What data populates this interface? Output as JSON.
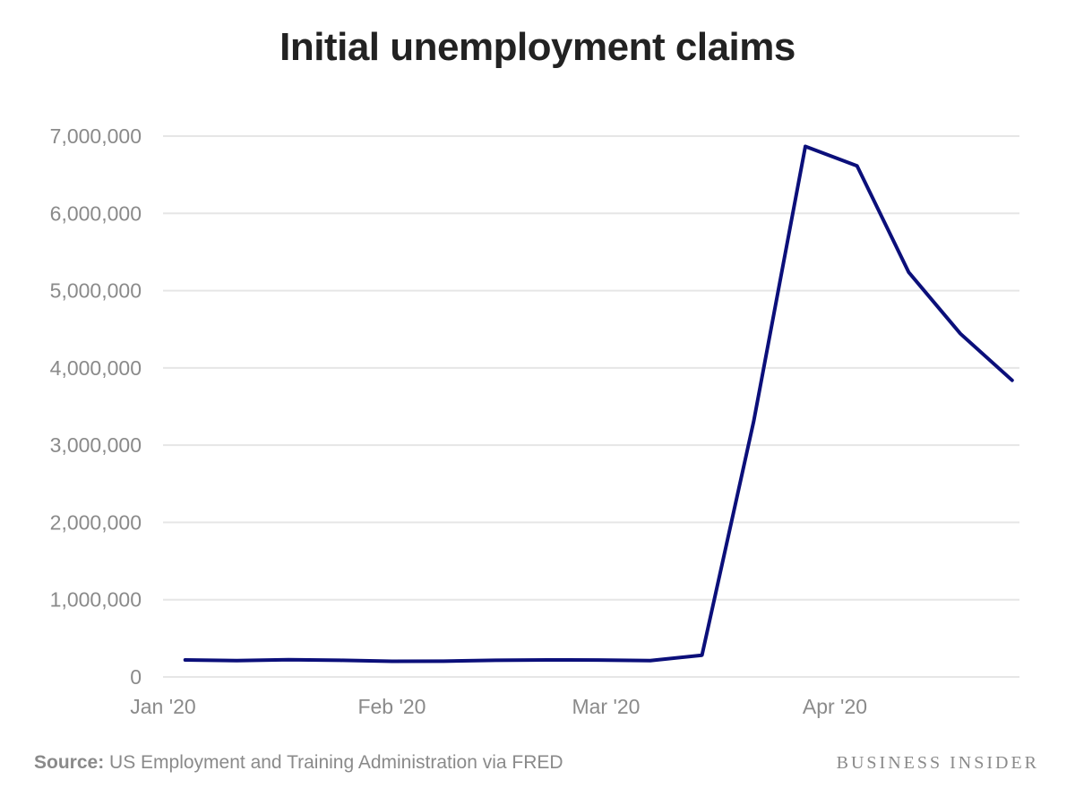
{
  "title": "Initial unemployment claims",
  "footer": {
    "source_label": "Source:",
    "source_text": " US Employment and Training Administration via FRED",
    "brand": "BUSINESS INSIDER"
  },
  "colors": {
    "line": "#0b0f7a",
    "grid": "#e6e6e6",
    "tick_text": "#8a8a8a",
    "title": "#222222"
  },
  "chart_data": {
    "type": "line",
    "title": "Initial unemployment claims",
    "xlabel": "",
    "ylabel": "",
    "ylim": [
      0,
      7000000
    ],
    "yticks": [
      0,
      1000000,
      2000000,
      3000000,
      4000000,
      5000000,
      6000000,
      7000000
    ],
    "ytick_labels": [
      "0",
      "1,000,000",
      "2,000,000",
      "3,000,000",
      "4,000,000",
      "5,000,000",
      "6,000,000",
      "7,000,000"
    ],
    "xlim": [
      "2020-01-01",
      "2020-04-26"
    ],
    "xticks": [
      "2020-01-01",
      "2020-02-01",
      "2020-03-01",
      "2020-04-01"
    ],
    "xtick_labels": [
      "Jan '20",
      "Feb '20",
      "Mar '20",
      "Apr '20"
    ],
    "grid": true,
    "legend": "none",
    "x": [
      "2020-01-04",
      "2020-01-11",
      "2020-01-18",
      "2020-01-25",
      "2020-02-01",
      "2020-02-08",
      "2020-02-15",
      "2020-02-22",
      "2020-02-29",
      "2020-03-07",
      "2020-03-14",
      "2020-03-21",
      "2020-03-28",
      "2020-04-04",
      "2020-04-11",
      "2020-04-18",
      "2020-04-25"
    ],
    "series": [
      {
        "values": [
          220000,
          212000,
          223000,
          216000,
          203000,
          204000,
          215000,
          220000,
          219000,
          211000,
          282000,
          3307000,
          6867000,
          6615000,
          5237000,
          4442000,
          3839000
        ]
      }
    ]
  }
}
